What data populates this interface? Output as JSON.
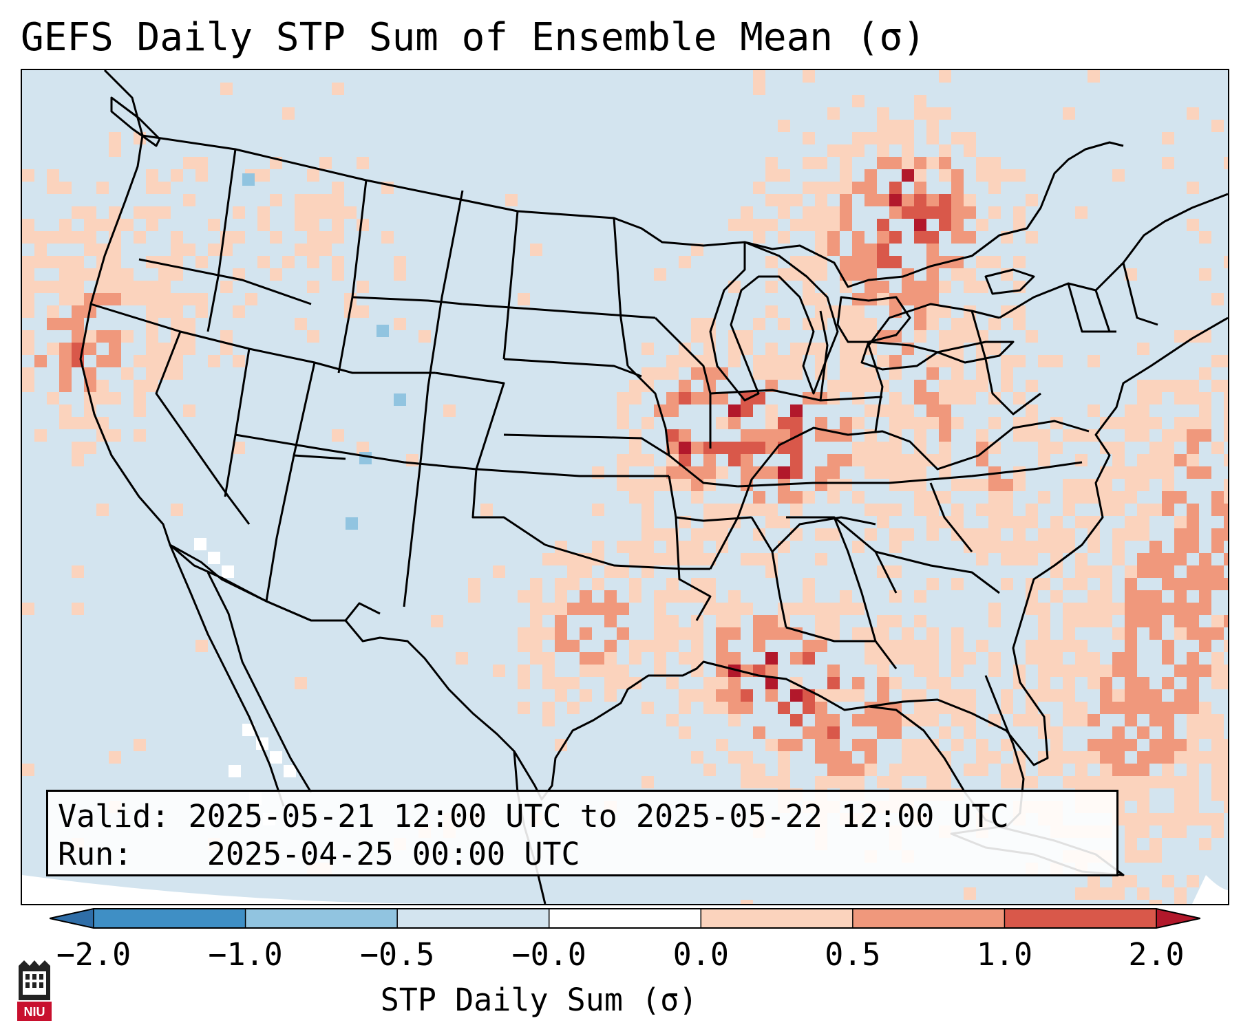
{
  "title": "GEFS Daily STP Sum of Ensemble Mean (σ)",
  "info": {
    "valid_label": "Valid:",
    "valid_value": "2025-05-21 12:00 UTC to 2025-05-22 12:00 UTC",
    "run_label": "Run:",
    "run_value": "2025-04-25 00:00 UTC"
  },
  "colorbar": {
    "label": "STP Daily Sum (σ)",
    "ticks": [
      "−2.0",
      "−1.0",
      "−0.5",
      "−0.0",
      "0.0",
      "0.5",
      "1.0",
      "2.0"
    ],
    "colors": [
      "#2f6ea8",
      "#3f8fc5",
      "#91c4e0",
      "#d3e4ef",
      "#ffffff",
      "#fbd3bd",
      "#f0987c",
      "#d9584a",
      "#b2182b"
    ],
    "extend": "both"
  },
  "logo": {
    "text": "NIU",
    "brand_color": "#c8102e"
  },
  "map": {
    "region": "Continental United States",
    "ocean_color": "#d3e4ef",
    "border_color": "#000000"
  }
}
